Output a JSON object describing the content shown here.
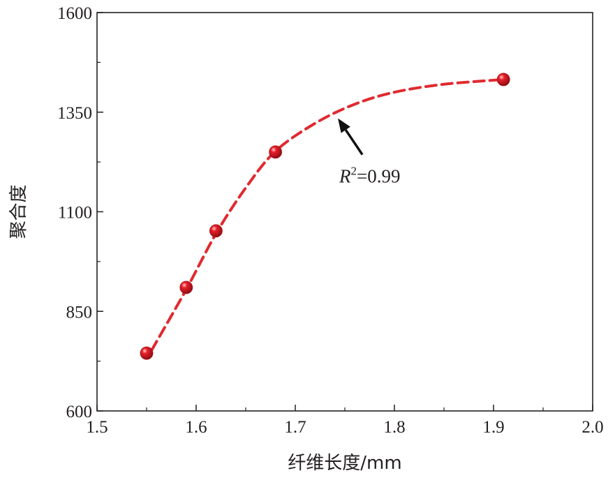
{
  "chart_data": {
    "type": "scatter",
    "title": "",
    "xlabel": "纤维长度/mm",
    "ylabel": "聚合度",
    "xlim": [
      1.5,
      2.0
    ],
    "ylim": [
      600,
      1600
    ],
    "x_ticks": [
      "1.5",
      "1.6",
      "1.7",
      "1.8",
      "1.9",
      "2.0"
    ],
    "y_ticks": [
      "600",
      "850",
      "1100",
      "1350",
      "1600"
    ],
    "series": [
      {
        "points": [
          {
            "x": 1.55,
            "y": 745
          },
          {
            "x": 1.59,
            "y": 910
          },
          {
            "x": 1.62,
            "y": 1052
          },
          {
            "x": 1.68,
            "y": 1250
          },
          {
            "x": 1.91,
            "y": 1432
          }
        ],
        "marker_color": "#e8202a"
      }
    ],
    "fit_line": {
      "style": "dashed",
      "color": "#e02a2f",
      "points": [
        {
          "x": 1.555,
          "y": 752
        },
        {
          "x": 1.59,
          "y": 905
        },
        {
          "x": 1.62,
          "y": 1045
        },
        {
          "x": 1.65,
          "y": 1160
        },
        {
          "x": 1.68,
          "y": 1252
        },
        {
          "x": 1.72,
          "y": 1322
        },
        {
          "x": 1.76,
          "y": 1370
        },
        {
          "x": 1.8,
          "y": 1400
        },
        {
          "x": 1.85,
          "y": 1420
        },
        {
          "x": 1.91,
          "y": 1432
        }
      ]
    },
    "annotation": {
      "text_var": "R",
      "text_sup": "2",
      "text_rest": "=0.99",
      "arrow_target": {
        "x": 1.743,
        "y": 1345
      }
    },
    "grid": false,
    "legend": "none"
  }
}
